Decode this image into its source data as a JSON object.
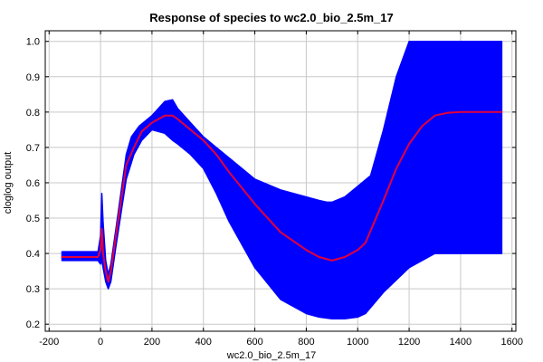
{
  "chart_data": {
    "type": "line",
    "title": "Response of species to wc2.0_bio_2.5m_17",
    "xlabel": "wc2.0_bio_2.5m_17",
    "ylabel": "cloglog output",
    "xlim": [
      -215,
      1615
    ],
    "ylim": [
      0.18,
      1.03
    ],
    "xticks": [
      -200,
      0,
      200,
      400,
      600,
      800,
      1000,
      1200,
      1400,
      1600
    ],
    "yticks": [
      0.2,
      0.3,
      0.4,
      0.5,
      0.6,
      0.7,
      0.8,
      0.9,
      1.0
    ],
    "xtick_labels": [
      "-200",
      "0",
      "200",
      "400",
      "600",
      "800",
      "1000",
      "1200",
      "1400",
      "1600"
    ],
    "ytick_labels": [
      "0.2",
      "0.3",
      "0.4",
      "0.5",
      "0.6",
      "0.7",
      "0.8",
      "0.9",
      "1.0"
    ],
    "grid": true,
    "colors": {
      "band": "#0000ff",
      "mean": "#e4003a"
    },
    "series": [
      {
        "role": "mean",
        "x": [
          -150,
          -10,
          0,
          5,
          10,
          20,
          30,
          40,
          60,
          100,
          130,
          160,
          200,
          250,
          280,
          300,
          350,
          400,
          450,
          500,
          600,
          700,
          800,
          850,
          900,
          950,
          1000,
          1030,
          1100,
          1150,
          1200,
          1250,
          1300,
          1350,
          1400,
          1500,
          1560
        ],
        "y": [
          0.39,
          0.39,
          0.41,
          0.47,
          0.4,
          0.35,
          0.32,
          0.35,
          0.45,
          0.65,
          0.7,
          0.745,
          0.77,
          0.79,
          0.79,
          0.78,
          0.75,
          0.72,
          0.68,
          0.63,
          0.54,
          0.46,
          0.41,
          0.39,
          0.38,
          0.39,
          0.41,
          0.43,
          0.55,
          0.64,
          0.71,
          0.76,
          0.79,
          0.798,
          0.8,
          0.8,
          0.8
        ]
      },
      {
        "role": "upper",
        "x": [
          -150,
          -10,
          0,
          5,
          10,
          20,
          30,
          40,
          60,
          100,
          120,
          150,
          200,
          250,
          280,
          300,
          350,
          400,
          450,
          500,
          600,
          700,
          800,
          850,
          880,
          900,
          950,
          1000,
          1050,
          1100,
          1150,
          1200,
          1300,
          1560
        ],
        "y": [
          0.405,
          0.405,
          0.45,
          0.57,
          0.49,
          0.38,
          0.34,
          0.37,
          0.47,
          0.68,
          0.73,
          0.76,
          0.79,
          0.83,
          0.835,
          0.81,
          0.77,
          0.73,
          0.7,
          0.67,
          0.61,
          0.58,
          0.56,
          0.55,
          0.545,
          0.545,
          0.56,
          0.59,
          0.62,
          0.75,
          0.9,
          1.0,
          1.0,
          1.0
        ]
      },
      {
        "role": "lower",
        "x": [
          -150,
          -10,
          0,
          5,
          10,
          20,
          30,
          40,
          60,
          100,
          130,
          160,
          200,
          250,
          280,
          300,
          350,
          400,
          450,
          500,
          600,
          700,
          800,
          850,
          900,
          950,
          1000,
          1030,
          1100,
          1200,
          1300,
          1560
        ],
        "y": [
          0.38,
          0.38,
          0.37,
          0.38,
          0.36,
          0.32,
          0.3,
          0.32,
          0.42,
          0.61,
          0.68,
          0.72,
          0.75,
          0.74,
          0.72,
          0.71,
          0.68,
          0.64,
          0.57,
          0.49,
          0.36,
          0.27,
          0.23,
          0.22,
          0.215,
          0.215,
          0.22,
          0.23,
          0.29,
          0.36,
          0.4,
          0.4
        ]
      }
    ]
  }
}
